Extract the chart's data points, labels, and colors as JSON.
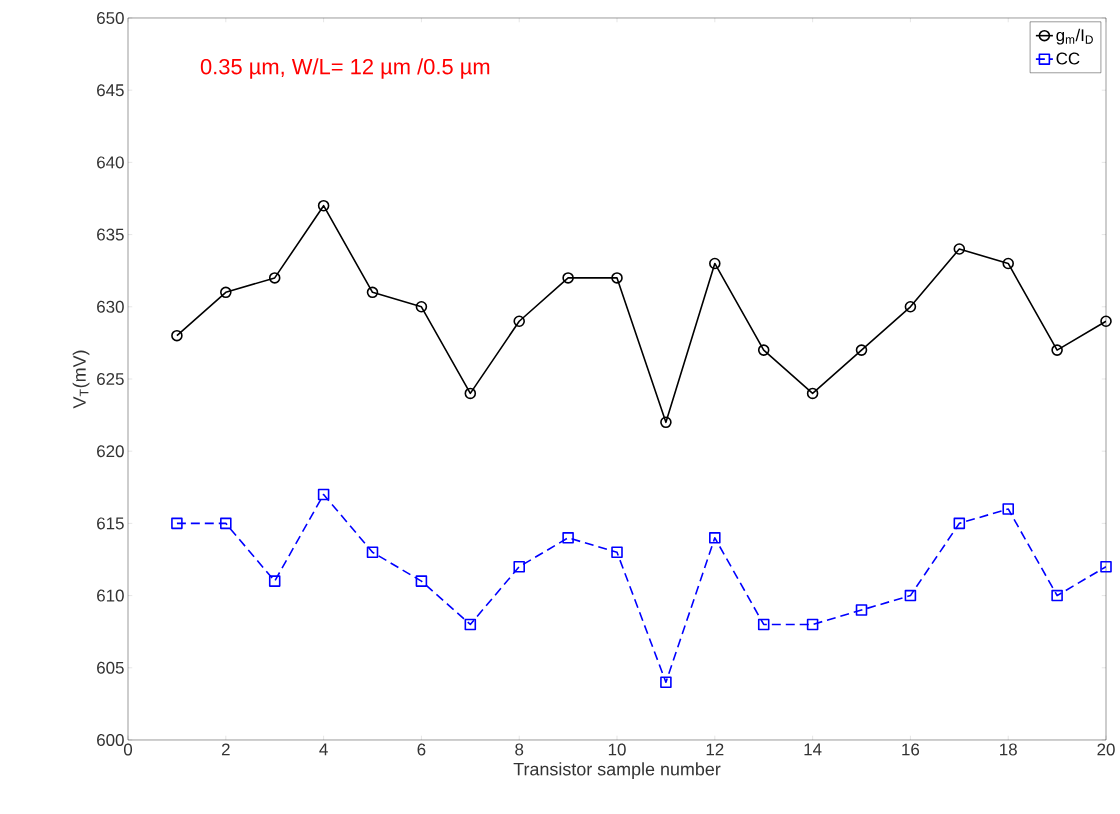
{
  "chart_data": {
    "type": "line",
    "xlabel": "Transistor sample number",
    "ylabel": "V$_{T}$(mV)",
    "x": [
      1,
      2,
      3,
      4,
      5,
      6,
      7,
      8,
      9,
      10,
      11,
      12,
      13,
      14,
      15,
      16,
      17,
      18,
      19,
      20
    ],
    "series": [
      {
        "name": "g$_{m}$/I$_{D}$",
        "color": "#000000",
        "marker": "circle",
        "line_style": "solid",
        "values": [
          628,
          631,
          632,
          637,
          631,
          630,
          624,
          629,
          632,
          632,
          622,
          633,
          627,
          624,
          627,
          630,
          634,
          633,
          627,
          629
        ]
      },
      {
        "name": "CC",
        "color": "#0000ff",
        "marker": "square",
        "line_style": "dashed",
        "values": [
          615,
          615,
          611,
          617,
          613,
          611,
          608,
          612,
          614,
          613,
          604,
          614,
          608,
          608,
          609,
          610,
          615,
          616,
          610,
          612
        ]
      }
    ],
    "xlim": [
      0,
      20
    ],
    "xticks": [
      0,
      2,
      4,
      6,
      8,
      10,
      12,
      14,
      16,
      18,
      20
    ],
    "ylim": [
      600,
      650
    ],
    "yticks": [
      600,
      605,
      610,
      615,
      620,
      625,
      630,
      635,
      640,
      645,
      650
    ],
    "grid": false,
    "legend": "top right",
    "annotations": [
      "0.35 µm, W/L= 12 µm /0.5 µm"
    ]
  }
}
